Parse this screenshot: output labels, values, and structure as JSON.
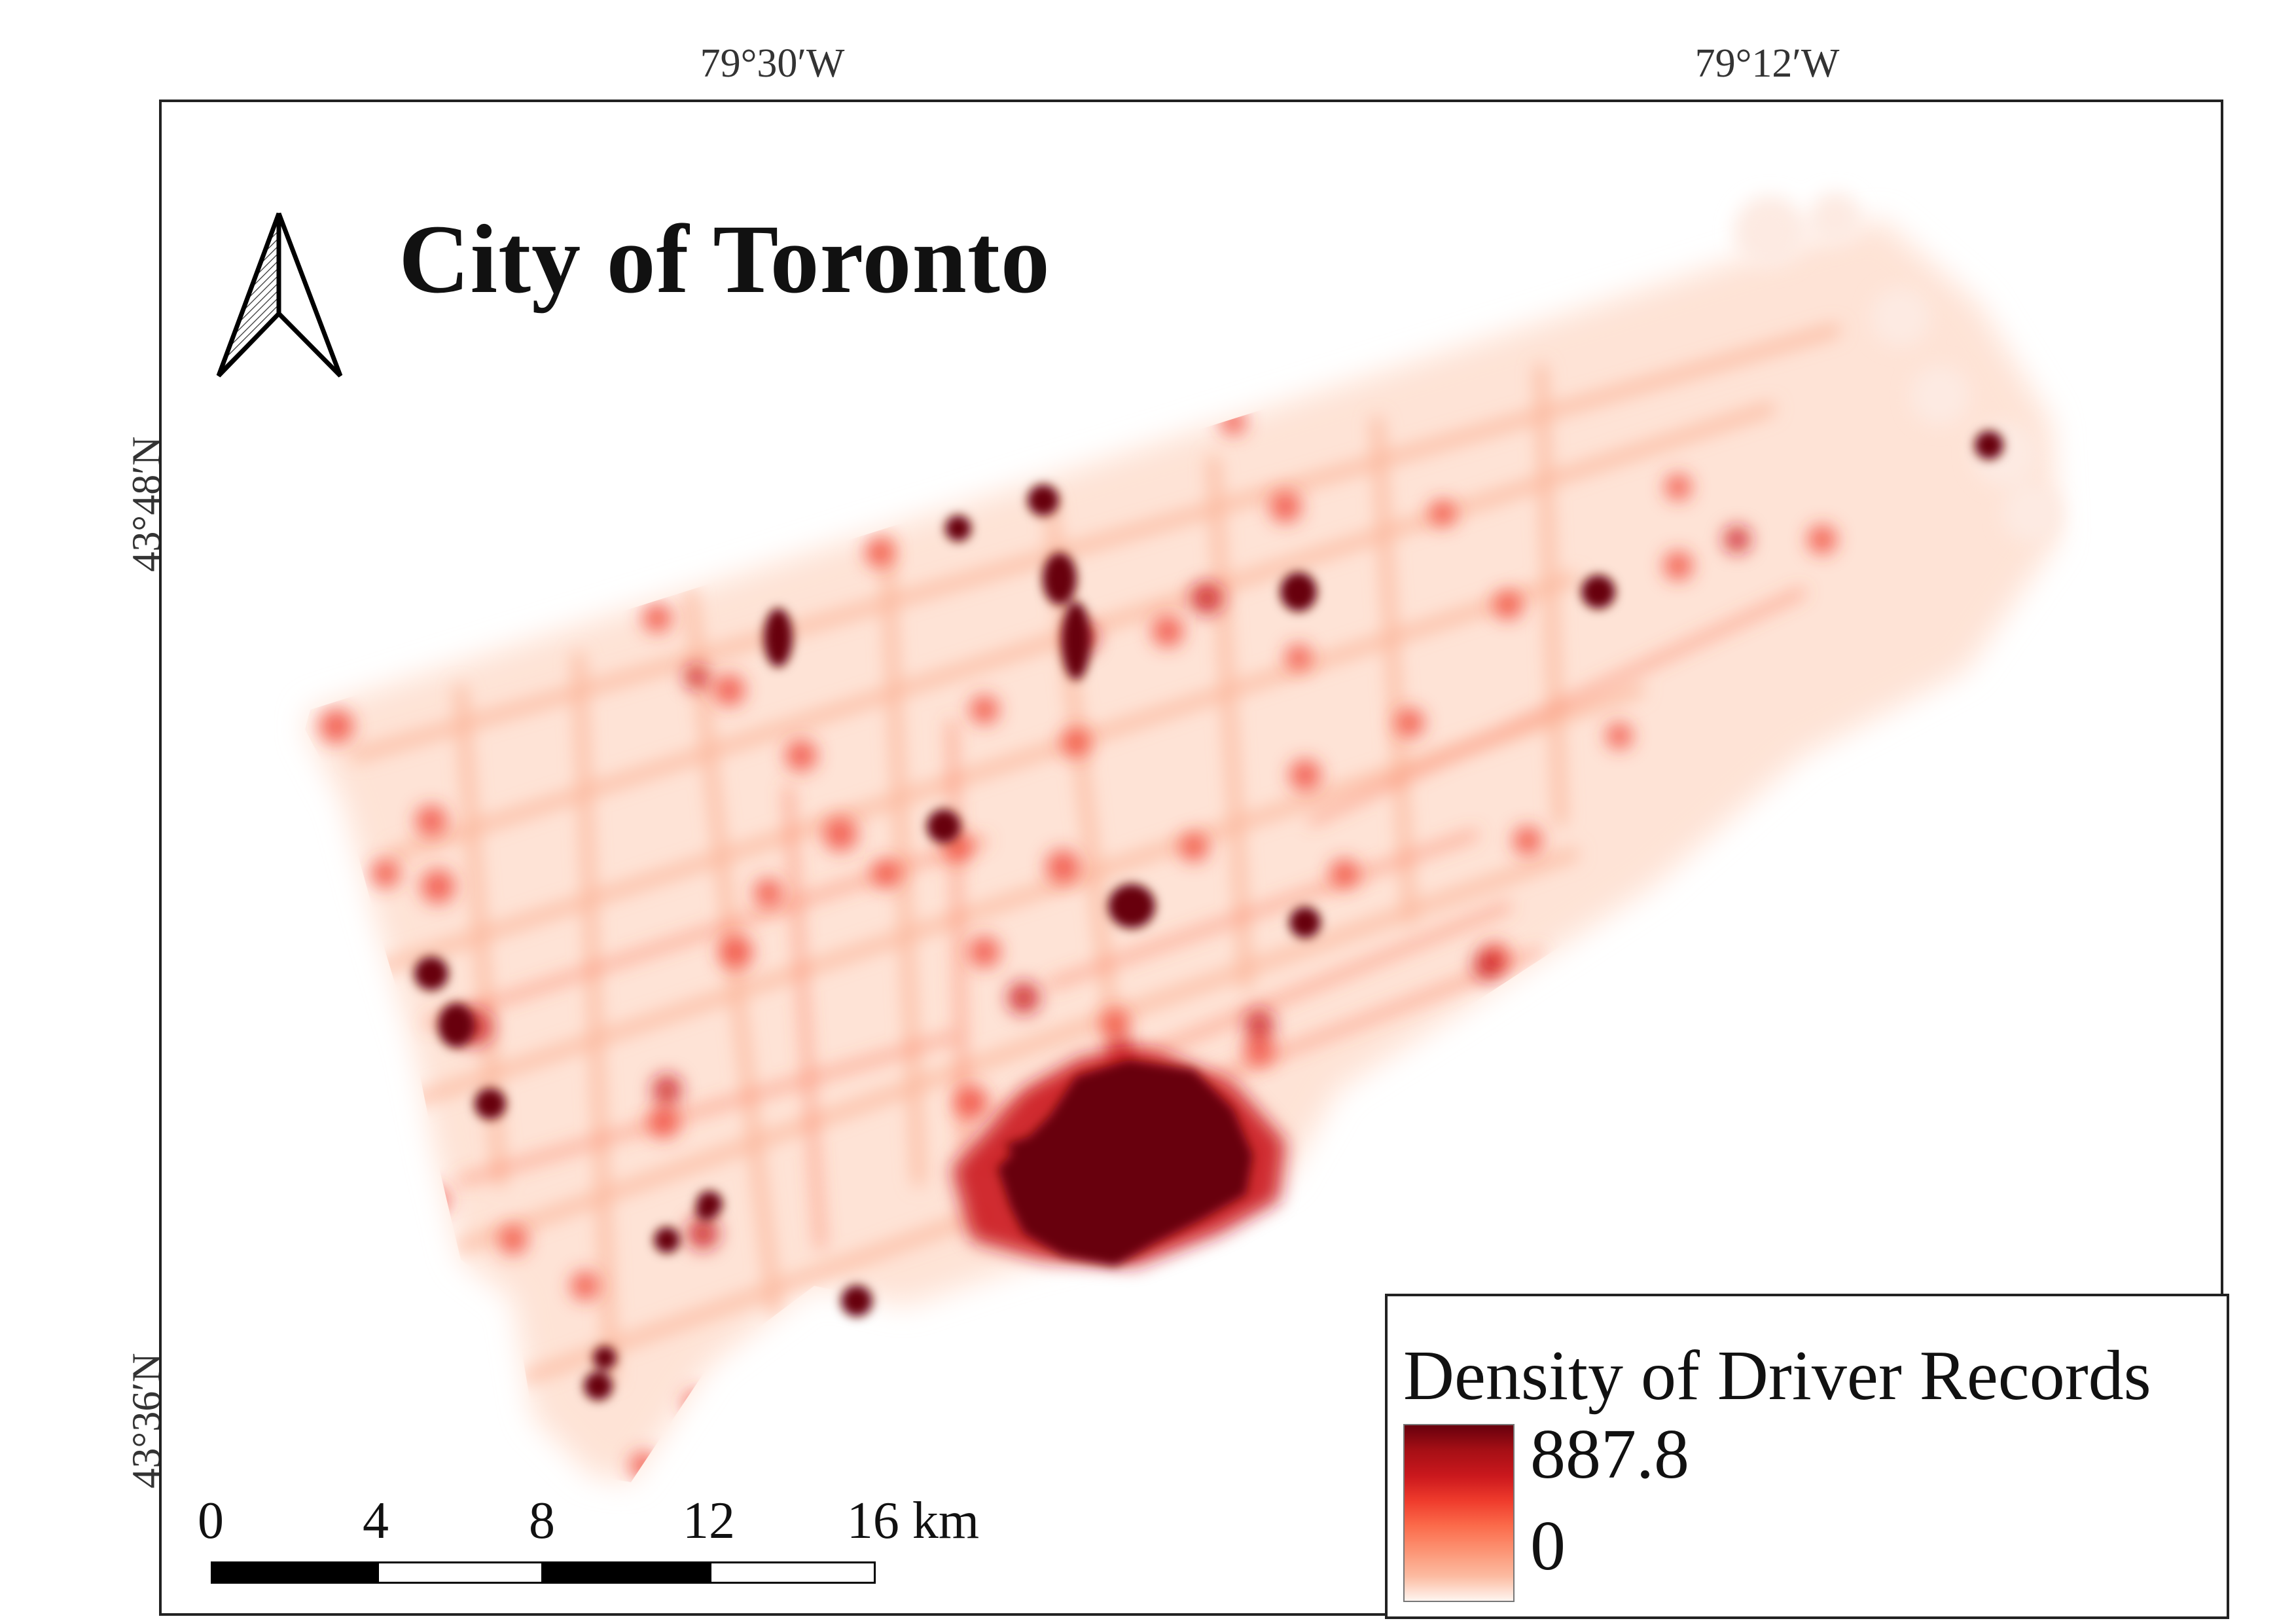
{
  "title": "City of Toronto",
  "graticule": {
    "lon_labels": [
      "79°30′W",
      "79°12′W"
    ],
    "lat_labels": [
      "43°48′N",
      "43°36′N"
    ]
  },
  "legend": {
    "title": "Density of Driver Records",
    "max": "887.8",
    "min": "0",
    "colors": [
      "#67000d",
      "#a50f15",
      "#cb181d",
      "#ef3b2c",
      "#fb6a4a",
      "#fc9272",
      "#fcbba1",
      "#fff5f0"
    ]
  },
  "scale_bar": {
    "labels": [
      "0",
      "4",
      "8",
      "12",
      "16 km"
    ]
  },
  "north_arrow": {
    "icon": "north-arrow-icon"
  }
}
